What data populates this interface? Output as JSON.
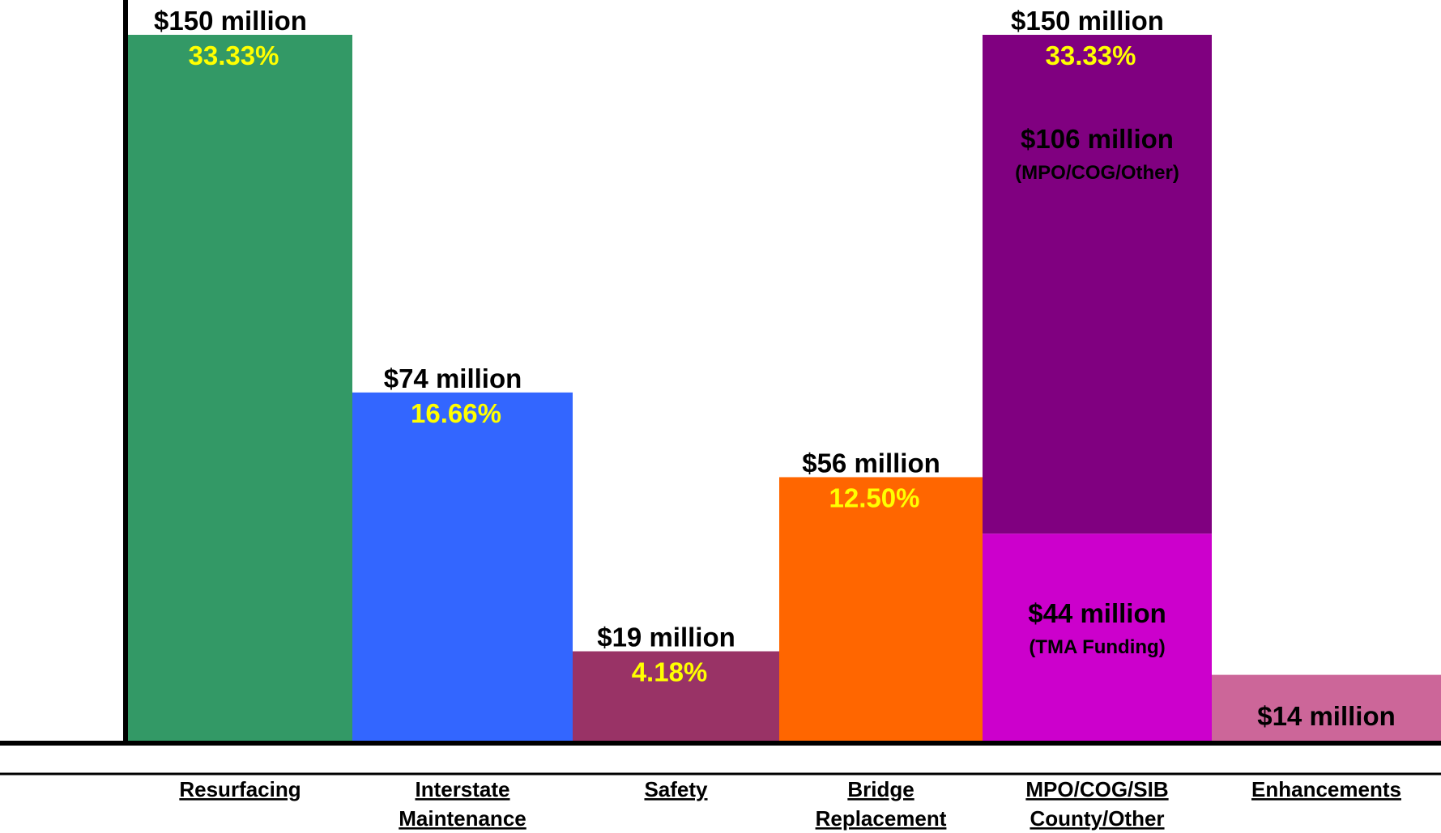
{
  "chart_data": {
    "type": "bar",
    "stacked": true,
    "categories": [
      [
        "Resurfacing"
      ],
      [
        "Interstate",
        "Maintenance"
      ],
      [
        "Safety"
      ],
      [
        "Bridge",
        "Replacement"
      ],
      [
        "MPO/COG/SIB",
        "County/Other"
      ],
      [
        "Enhancements"
      ]
    ],
    "bars": [
      {
        "category": "Resurfacing",
        "total": 150,
        "total_label": "$150 million",
        "percent_label": "33.33%",
        "segments": [
          {
            "value": 150,
            "color": "#339966"
          }
        ]
      },
      {
        "category": "Interstate Maintenance",
        "total": 74,
        "total_label": "$74 million",
        "percent_label": "16.66%",
        "segments": [
          {
            "value": 74,
            "color": "#3366FF"
          }
        ]
      },
      {
        "category": "Safety",
        "total": 19,
        "total_label": "$19 million",
        "percent_label": "4.18%",
        "segments": [
          {
            "value": 19,
            "color": "#993366"
          }
        ]
      },
      {
        "category": "Bridge Replacement",
        "total": 56,
        "total_label": "$56 million",
        "percent_label": "12.50%",
        "segments": [
          {
            "value": 56,
            "color": "#FF6600"
          }
        ]
      },
      {
        "category": "MPO/COG/SIB County/Other",
        "total": 150,
        "total_label": "$150 million",
        "percent_label": "33.33%",
        "segments": [
          {
            "value": 44,
            "color": "#CC00CC",
            "label": "$44 million",
            "note": "(TMA Funding)"
          },
          {
            "value": 106,
            "color": "#800080",
            "label": "$106 million",
            "note": "(MPO/COG/Other)"
          }
        ]
      },
      {
        "category": "Enhancements",
        "total": 14,
        "total_label": "",
        "percent_label": "",
        "segments": [
          {
            "value": 14,
            "color": "#CC6699",
            "label": "$14 million"
          }
        ]
      }
    ],
    "ylim": [
      0,
      150
    ],
    "percent_color": "#FFFF00",
    "axis_color": "#000000"
  }
}
